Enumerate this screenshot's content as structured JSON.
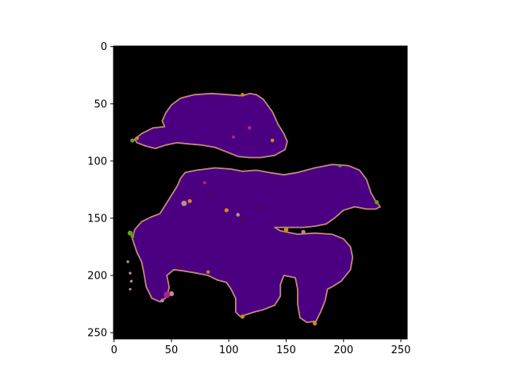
{
  "image": {
    "width": 256,
    "height": 256,
    "background_color": "#000000",
    "colors": {
      "region_fill": "#4B0082",
      "edge_pink": "#C08A8A",
      "edge_orange": "#D08A1A",
      "edge_green": "#6A9A2A",
      "spot_magenta": "#B0208A",
      "spot_dark": "#5A0A2A"
    },
    "regions": [
      {
        "name": "upper-blob",
        "outline": [
          [
            58,
            45
          ],
          [
            70,
            42
          ],
          [
            85,
            41
          ],
          [
            100,
            42
          ],
          [
            112,
            43
          ],
          [
            118,
            41
          ],
          [
            124,
            42
          ],
          [
            130,
            46
          ],
          [
            138,
            57
          ],
          [
            143,
            68
          ],
          [
            148,
            76
          ],
          [
            151,
            83
          ],
          [
            149,
            90
          ],
          [
            140,
            95
          ],
          [
            128,
            97
          ],
          [
            118,
            97
          ],
          [
            108,
            96
          ],
          [
            98,
            92
          ],
          [
            88,
            88
          ],
          [
            76,
            86
          ],
          [
            64,
            85
          ],
          [
            55,
            84
          ],
          [
            45,
            86
          ],
          [
            36,
            89
          ],
          [
            28,
            87
          ],
          [
            20,
            84
          ],
          [
            18,
            81
          ],
          [
            24,
            76
          ],
          [
            34,
            71
          ],
          [
            44,
            70
          ],
          [
            42,
            65
          ],
          [
            45,
            58
          ],
          [
            50,
            51
          ]
        ]
      },
      {
        "name": "lower-blob",
        "outline": [
          [
            62,
            110
          ],
          [
            72,
            108
          ],
          [
            88,
            106
          ],
          [
            102,
            107
          ],
          [
            112,
            109
          ],
          [
            124,
            108
          ],
          [
            135,
            110
          ],
          [
            148,
            112
          ],
          [
            160,
            110
          ],
          [
            175,
            106
          ],
          [
            190,
            103
          ],
          [
            204,
            104
          ],
          [
            214,
            108
          ],
          [
            220,
            116
          ],
          [
            224,
            128
          ],
          [
            228,
            135
          ],
          [
            232,
            140
          ],
          [
            228,
            142
          ],
          [
            220,
            142
          ],
          [
            210,
            140
          ],
          [
            200,
            143
          ],
          [
            192,
            150
          ],
          [
            185,
            155
          ],
          [
            175,
            157
          ],
          [
            165,
            158
          ],
          [
            155,
            158
          ],
          [
            140,
            158
          ],
          [
            145,
            161
          ],
          [
            160,
            164
          ],
          [
            175,
            163
          ],
          [
            190,
            164
          ],
          [
            200,
            168
          ],
          [
            206,
            175
          ],
          [
            208,
            184
          ],
          [
            206,
            195
          ],
          [
            198,
            205
          ],
          [
            190,
            210
          ],
          [
            186,
            212
          ],
          [
            184,
            222
          ],
          [
            180,
            232
          ],
          [
            176,
            240
          ],
          [
            168,
            241
          ],
          [
            162,
            237
          ],
          [
            160,
            225
          ],
          [
            160,
            212
          ],
          [
            158,
            202
          ],
          [
            148,
            200
          ],
          [
            145,
            208
          ],
          [
            145,
            218
          ],
          [
            140,
            226
          ],
          [
            130,
            230
          ],
          [
            122,
            232
          ],
          [
            116,
            234
          ],
          [
            110,
            236
          ],
          [
            106,
            232
          ],
          [
            106,
            220
          ],
          [
            102,
            212
          ],
          [
            98,
            206
          ],
          [
            90,
            204
          ],
          [
            82,
            200
          ],
          [
            72,
            198
          ],
          [
            60,
            196
          ],
          [
            52,
            195
          ],
          [
            46,
            200
          ],
          [
            48,
            210
          ],
          [
            46,
            219
          ],
          [
            40,
            223
          ],
          [
            33,
            220
          ],
          [
            28,
            210
          ],
          [
            26,
            198
          ],
          [
            24,
            188
          ],
          [
            20,
            180
          ],
          [
            16,
            168
          ],
          [
            18,
            160
          ],
          [
            24,
            153
          ],
          [
            32,
            149
          ],
          [
            40,
            146
          ],
          [
            45,
            138
          ],
          [
            50,
            130
          ],
          [
            55,
            122
          ],
          [
            58,
            115
          ]
        ]
      }
    ],
    "spots": [
      {
        "x": 118,
        "y": 71,
        "r": 1.6,
        "color": "spot_magenta"
      },
      {
        "x": 104,
        "y": 79,
        "r": 1.4,
        "color": "spot_magenta"
      },
      {
        "x": 79,
        "y": 119,
        "r": 1.4,
        "color": "spot_magenta"
      },
      {
        "x": 85,
        "y": 129,
        "r": 1.3,
        "color": "spot_dark"
      },
      {
        "x": 112,
        "y": 150,
        "r": 1.4,
        "color": "spot_dark"
      },
      {
        "x": 56,
        "y": 191,
        "r": 1.4,
        "color": "spot_dark"
      },
      {
        "x": 46,
        "y": 217,
        "r": 2.8,
        "color": "spot_magenta"
      },
      {
        "x": 128,
        "y": 141,
        "r": 1.2,
        "color": "spot_dark"
      }
    ],
    "fringes": [
      {
        "x": 14,
        "y": 163,
        "r": 2.2,
        "color": "edge_green"
      },
      {
        "x": 16,
        "y": 166,
        "r": 1.6,
        "color": "edge_green"
      },
      {
        "x": 229,
        "y": 136,
        "r": 1.8,
        "color": "edge_green"
      },
      {
        "x": 197,
        "y": 104,
        "r": 1.5,
        "color": "edge_green"
      },
      {
        "x": 16,
        "y": 82,
        "r": 1.8,
        "color": "edge_green"
      },
      {
        "x": 20,
        "y": 80,
        "r": 1.6,
        "color": "edge_orange"
      },
      {
        "x": 61,
        "y": 137,
        "r": 2.4,
        "color": "edge_pink"
      },
      {
        "x": 66,
        "y": 135,
        "r": 1.8,
        "color": "edge_orange"
      },
      {
        "x": 98,
        "y": 143,
        "r": 1.8,
        "color": "edge_orange"
      },
      {
        "x": 108,
        "y": 147,
        "r": 1.6,
        "color": "edge_pink"
      },
      {
        "x": 150,
        "y": 160,
        "r": 2.0,
        "color": "edge_orange"
      },
      {
        "x": 165,
        "y": 162,
        "r": 1.8,
        "color": "edge_pink"
      },
      {
        "x": 50,
        "y": 216,
        "r": 2.2,
        "color": "edge_pink"
      },
      {
        "x": 42,
        "y": 222,
        "r": 1.6,
        "color": "edge_pink"
      },
      {
        "x": 112,
        "y": 236,
        "r": 1.8,
        "color": "edge_orange"
      },
      {
        "x": 175,
        "y": 242,
        "r": 1.8,
        "color": "edge_orange"
      },
      {
        "x": 112,
        "y": 42,
        "r": 1.6,
        "color": "edge_orange"
      },
      {
        "x": 138,
        "y": 82,
        "r": 1.6,
        "color": "edge_orange"
      },
      {
        "x": 82,
        "y": 197,
        "r": 1.5,
        "color": "edge_orange"
      },
      {
        "x": 14,
        "y": 198,
        "r": 1.2,
        "color": "edge_pink"
      },
      {
        "x": 15,
        "y": 205,
        "r": 1.2,
        "color": "edge_pink"
      },
      {
        "x": 14,
        "y": 212,
        "r": 1.1,
        "color": "edge_pink"
      },
      {
        "x": 12,
        "y": 188,
        "r": 1.2,
        "color": "edge_pink"
      }
    ]
  },
  "axes": {
    "xticks": [
      0,
      50,
      100,
      150,
      200,
      250
    ],
    "yticks": [
      0,
      50,
      100,
      150,
      200,
      250
    ],
    "xlim": [
      -0.5,
      255.5
    ],
    "ylim": [
      255.5,
      -0.5
    ]
  }
}
